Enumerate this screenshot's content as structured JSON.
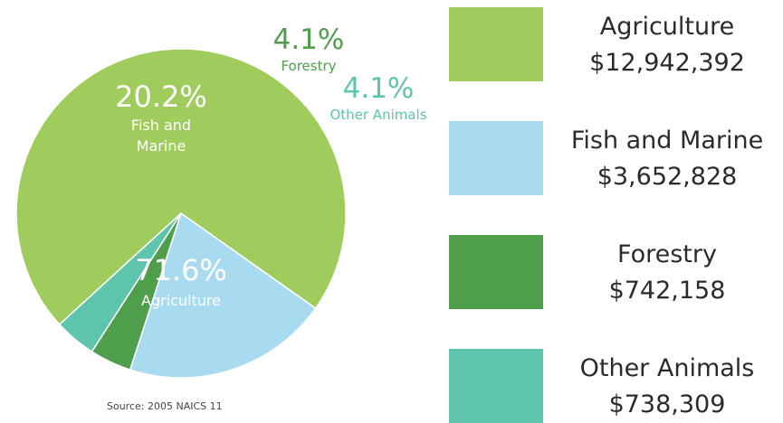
{
  "chart_data": {
    "type": "pie",
    "title": "",
    "source": "Source: 2005 NAICS 11",
    "slices": [
      {
        "name": "Agriculture",
        "percent": 71.6,
        "percent_label": "71.6%",
        "value": 12942392,
        "value_label": "$12,942,392",
        "color": "#9fcc5c"
      },
      {
        "name": "Fish and Marine",
        "percent": 20.2,
        "percent_label": "20.2%",
        "value": 3652828,
        "value_label": "$3,652,828",
        "color": "#a9dbf0"
      },
      {
        "name": "Forestry",
        "percent": 4.1,
        "percent_label": "4.1%",
        "value": 742158,
        "value_label": "$742,158",
        "color": "#4e9e4c"
      },
      {
        "name": "Other Animals",
        "percent": 4.1,
        "percent_label": "4.1%",
        "value": 738309,
        "value_label": "$738,309",
        "color": "#5ec4ac"
      }
    ],
    "slice_label_lines": {
      "fish_and_marine": [
        "Fish and",
        "Marine"
      ]
    },
    "outside_label_colors": {
      "forestry": "#4e9e4c",
      "other_animals": "#5ec4ac"
    },
    "legend": {
      "placement": "right"
    }
  }
}
